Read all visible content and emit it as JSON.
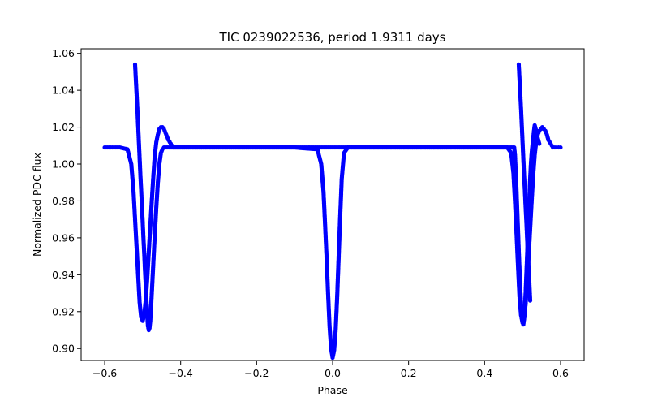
{
  "chart_data": {
    "type": "scatter",
    "title": "TIC 0239022536, period 1.9311 days",
    "xlabel": "Phase",
    "ylabel": "Normalized PDC flux",
    "xlim": [
      -0.662,
      0.662
    ],
    "ylim": [
      0.8935,
      1.0625
    ],
    "xticks": [
      -0.6,
      -0.4,
      -0.2,
      0.0,
      0.2,
      0.4,
      0.6
    ],
    "xtick_labels": [
      "−0.6",
      "−0.4",
      "−0.2",
      "0.0",
      "0.2",
      "0.4",
      "0.6"
    ],
    "yticks": [
      0.9,
      0.92,
      0.94,
      0.96,
      0.98,
      1.0,
      1.02,
      1.04,
      1.06
    ],
    "ytick_labels": [
      "0.90",
      "0.92",
      "0.94",
      "0.96",
      "0.98",
      "1.00",
      "1.02",
      "1.04",
      "1.06"
    ],
    "grid": false,
    "marker_color": "#0000ff",
    "series": [
      {
        "x": [
          -0.6,
          -0.58,
          -0.56,
          -0.54,
          -0.53,
          -0.524,
          -0.52,
          -0.516,
          -0.512,
          -0.508,
          -0.504,
          -0.5,
          -0.496,
          -0.492,
          -0.488,
          -0.484,
          -0.48,
          -0.476,
          -0.472,
          -0.468,
          -0.464,
          -0.46,
          -0.456,
          -0.452,
          -0.448,
          -0.444,
          -0.44,
          -0.436,
          -0.432,
          -0.426,
          -0.42,
          -0.4,
          -0.3,
          -0.2,
          -0.1,
          -0.04,
          -0.03,
          -0.024,
          -0.02,
          -0.016,
          -0.012,
          -0.008,
          -0.004,
          0.0,
          0.004,
          0.008,
          0.012,
          0.016,
          0.02,
          0.024,
          0.03,
          0.04,
          0.1,
          0.2,
          0.3,
          0.4,
          0.46,
          0.47,
          0.476,
          0.48,
          0.484,
          0.488,
          0.492,
          0.496,
          0.5,
          0.504,
          0.508,
          0.512,
          0.516,
          0.52,
          0.524,
          0.528,
          0.532,
          0.536,
          0.54,
          0.544,
          0.548,
          0.552,
          0.556,
          0.56,
          0.564,
          0.568,
          0.574,
          0.58,
          0.59,
          0.6
        ],
        "y": [
          1.009,
          1.009,
          1.009,
          1.008,
          1.0,
          0.985,
          0.97,
          0.955,
          0.94,
          0.925,
          0.917,
          0.915,
          0.918,
          0.926,
          0.938,
          0.952,
          0.966,
          0.98,
          0.993,
          1.005,
          1.012,
          1.016,
          1.019,
          1.02,
          1.02,
          1.019,
          1.017,
          1.015,
          1.013,
          1.011,
          1.009,
          1.009,
          1.009,
          1.009,
          1.009,
          1.008,
          1.0,
          0.985,
          0.968,
          0.95,
          0.93,
          0.912,
          0.9,
          0.895,
          0.899,
          0.91,
          0.928,
          0.95,
          0.972,
          0.992,
          1.006,
          1.009,
          1.009,
          1.009,
          1.009,
          1.009,
          1.009,
          1.006,
          0.995,
          0.98,
          0.963,
          0.945,
          0.928,
          0.918,
          0.914,
          0.916,
          0.924,
          0.936,
          0.95,
          0.965,
          0.98,
          0.994,
          1.005,
          1.012,
          1.016,
          1.018,
          1.019,
          1.02,
          1.019,
          1.018,
          1.016,
          1.013,
          1.011,
          1.009,
          1.009,
          1.009
        ]
      },
      {
        "x": [
          -0.52,
          -0.518,
          -0.516,
          -0.514,
          -0.512,
          -0.51,
          -0.508,
          -0.506,
          -0.504,
          -0.502,
          -0.5,
          -0.498,
          -0.496,
          -0.494,
          -0.492,
          -0.49,
          -0.488,
          -0.486,
          -0.484,
          -0.482,
          -0.48,
          -0.478,
          -0.476,
          -0.472,
          -0.468,
          -0.464,
          -0.46,
          -0.456,
          -0.452,
          -0.448,
          -0.444,
          0.478,
          0.48,
          0.482,
          0.484,
          0.486,
          0.488,
          0.49,
          0.492,
          0.494,
          0.496,
          0.498,
          0.5,
          0.502,
          0.504,
          0.506,
          0.508,
          0.51,
          0.512,
          0.514,
          0.516,
          0.518,
          0.52,
          0.522,
          0.524,
          0.526,
          0.528,
          0.53,
          0.532,
          0.536,
          0.54,
          0.544
        ],
        "y": [
          1.054,
          1.046,
          1.038,
          1.03,
          1.021,
          1.012,
          1.003,
          0.994,
          0.986,
          0.977,
          0.969,
          0.96,
          0.952,
          0.943,
          0.935,
          0.926,
          0.918,
          0.912,
          0.91,
          0.911,
          0.915,
          0.922,
          0.93,
          0.946,
          0.962,
          0.977,
          0.99,
          1.0,
          1.006,
          1.008,
          1.009,
          1.009,
          1.005,
          0.996,
          0.986,
          0.975,
          0.964,
          0.953,
          0.943,
          0.933,
          0.924,
          0.918,
          0.914,
          0.913,
          0.916,
          0.922,
          0.93,
          0.94,
          0.95,
          0.961,
          0.972,
          0.982,
          0.992,
          1.0,
          1.006,
          1.01,
          1.014,
          1.018,
          1.021,
          1.018,
          1.014,
          1.011
        ]
      },
      {
        "x": [
          0.49,
          0.492,
          0.494,
          0.496,
          0.498,
          0.5,
          0.502,
          0.504,
          0.506,
          0.508,
          0.51,
          0.512,
          0.514,
          0.516,
          0.518,
          0.52
        ],
        "y": [
          1.054,
          1.046,
          1.038,
          1.03,
          1.021,
          1.012,
          1.003,
          0.994,
          0.986,
          0.977,
          0.969,
          0.96,
          0.952,
          0.943,
          0.935,
          0.926
        ]
      }
    ]
  }
}
